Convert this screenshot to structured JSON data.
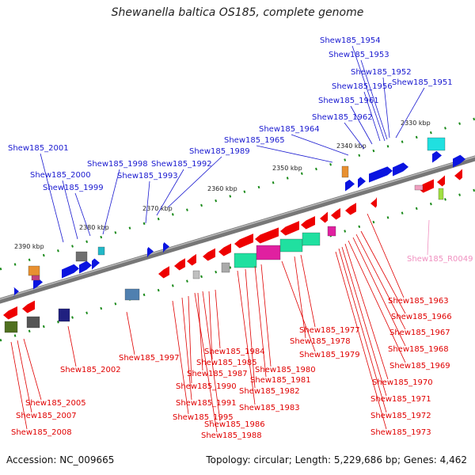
{
  "title": "Shewanella baltica OS185, complete genome",
  "footer": {
    "accession": "Accession: NC_009665",
    "meta": "Topology: circular; Length: 5,229,686 bp; Genes: 4,462"
  },
  "colors": {
    "forward_label": "#1a1ad0",
    "reverse_label": "#e00000",
    "rna_label": "#f090c0",
    "forward_gene": "#0a14e0",
    "reverse_gene": "#ee0000",
    "backbone": "#777777",
    "tick": "#1a8a1a"
  },
  "ruler": [
    "2390 kbp",
    "2380 kbp",
    "2370 kbp",
    "2360 kbp",
    "2350 kbp",
    "2340 kbp",
    "2330 kbp"
  ],
  "forward_labels": [
    "Shew185_1954",
    "Shew185_1953",
    "Shew185_1952",
    "Shew185_1956",
    "Shew185_1951",
    "Shew185_1961",
    "Shew185_1962",
    "Shew185_1964",
    "Shew185_1965",
    "Shew185_1989",
    "Shew185_1992",
    "Shew185_1993",
    "Shew185_1998",
    "Shew185_2001",
    "Shew185_2000",
    "Shew185_1999"
  ],
  "rna_labels": [
    "Shew185_R0049"
  ],
  "reverse_labels": [
    "Shew185_1963",
    "Shew185_1966",
    "Shew185_1967",
    "Shew185_1968",
    "Shew185_1969",
    "Shew185_1970",
    "Shew185_1971",
    "Shew185_1972",
    "Shew185_1973",
    "Shew185_1977",
    "Shew185_1978",
    "Shew185_1979",
    "Shew185_1984",
    "Shew185_1985",
    "Shew185_1980",
    "Shew185_1987",
    "Shew185_1981",
    "Shew185_1990",
    "Shew185_1982",
    "Shew185_1991",
    "Shew185_1983",
    "Shew185_1995",
    "Shew185_1986",
    "Shew185_1988",
    "Shew185_1997",
    "Shew185_2002",
    "Shew185_2005",
    "Shew185_2007",
    "Shew185_2008"
  ]
}
